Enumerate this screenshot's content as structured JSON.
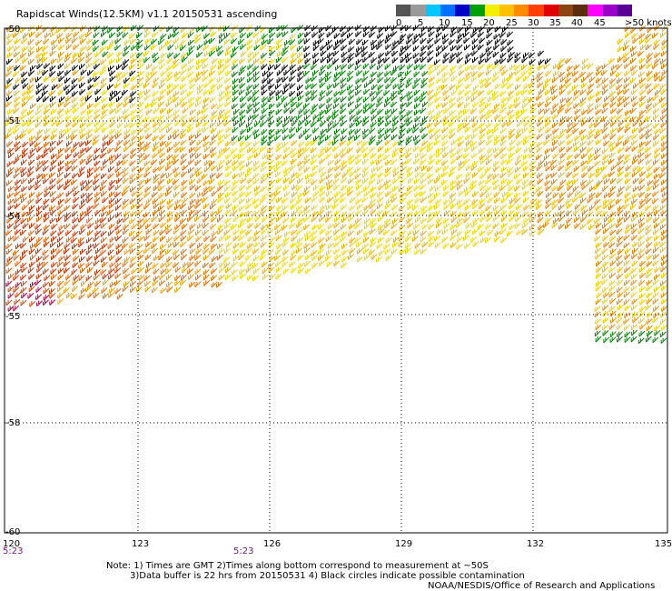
{
  "title": "Rapidscat Winds(12.5KM) v1.1 20150531 ascending",
  "legend": {
    "colors": [
      "#555555",
      "#9a9a9a",
      "#00c8ff",
      "#0070ff",
      "#0000c8",
      "#00a000",
      "#f0f000",
      "#ffc000",
      "#ff8c00",
      "#ff4000",
      "#e00000",
      "#8b4513",
      "#5a2d0c",
      "#ff00ff",
      "#9a00c8",
      "#5a0096"
    ],
    "labels": [
      "0",
      "5",
      "10",
      "15",
      "20",
      "25",
      "30",
      "35",
      "40",
      "45",
      ">50 knots"
    ]
  },
  "axes": {
    "lat_labels": [
      "-50",
      "-51",
      "-54",
      "-55",
      "-58",
      "-60"
    ],
    "lon_labels": [
      "120",
      "123",
      "126",
      "129",
      "132",
      "135"
    ]
  },
  "times": [
    "5:23",
    "5:23"
  ],
  "notes": {
    "line1": "Note: 1) Times are GMT 2)Times along bottom correspond to measurement at ~50S",
    "line2": "3)Data buffer is 22 hrs from 20150531 4) Black circles indicate possible contamination",
    "credit": "NOAA/NESDIS/Office of Research and Applications"
  }
}
